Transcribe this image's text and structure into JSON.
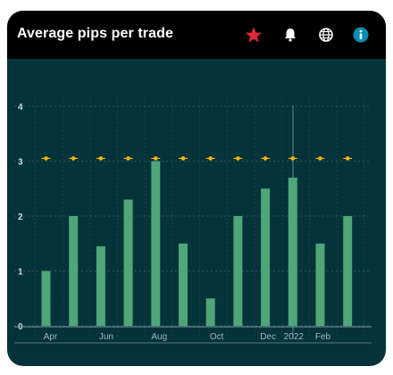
{
  "header": {
    "title": "Average pips per trade",
    "icons": [
      "star-icon",
      "bell-icon",
      "globe-icon",
      "info-icon"
    ]
  },
  "colors": {
    "card_bg": "#05333a",
    "header_bg": "#000000",
    "bar": "#4fa678",
    "marker": "#f5b400",
    "star": "#e0283a",
    "info": "#0a8db0"
  },
  "chart_data": {
    "type": "bar",
    "title": "Average pips per trade",
    "categories": [
      "2021-04",
      "2021-05",
      "2021-06",
      "2021-07",
      "2021-08",
      "2021-09",
      "2021-10",
      "2021-11",
      "2021-12",
      "2022-01",
      "2022-02",
      "2022-03"
    ],
    "x_tick_labels": [
      "Apr",
      "Jun",
      "Aug",
      "Oct",
      "Dec",
      "2022",
      "Feb"
    ],
    "series": [
      {
        "type": "bar",
        "values": [
          1.0,
          2.0,
          1.45,
          2.3,
          3.0,
          1.5,
          0.5,
          2.0,
          2.5,
          2.7,
          1.5,
          2.0
        ]
      },
      {
        "type": "line-markers",
        "values": [
          3.05,
          3.05,
          3.05,
          3.05,
          3.05,
          3.05,
          3.05,
          3.05,
          3.05,
          3.05,
          3.05,
          3.05
        ]
      }
    ],
    "yticks": [
      0,
      1,
      2,
      3,
      4
    ],
    "ylim": [
      0,
      4.3
    ],
    "grid": true,
    "xlabel": "",
    "ylabel": ""
  }
}
